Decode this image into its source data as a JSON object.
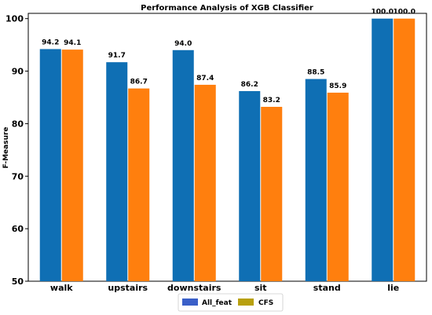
{
  "chart_data": {
    "type": "bar",
    "title": "Performance Analysis of XGB Classifier",
    "xlabel": "",
    "ylabel": "F-Measure",
    "ylim": [
      50,
      101
    ],
    "yticks": [
      50,
      60,
      70,
      80,
      90,
      100
    ],
    "categories": [
      "walk",
      "upstairs",
      "downstairs",
      "sit",
      "stand",
      "lie"
    ],
    "series": [
      {
        "name": "All_feat",
        "color": "#0f6fb4",
        "legend_color": "#3a5fc8",
        "values": [
          94.2,
          91.7,
          94.0,
          86.2,
          88.5,
          100.0
        ],
        "labels": [
          "94.2",
          "91.7",
          "94.0",
          "86.2",
          "88.5",
          "100.0"
        ]
      },
      {
        "name": "CFS",
        "color": "#ff7f0e",
        "legend_color": "#b8a00e",
        "values": [
          94.1,
          86.7,
          87.4,
          83.2,
          85.9,
          100.0
        ],
        "labels": [
          "94.1",
          "86.7",
          "87.4",
          "83.2",
          "85.9",
          "100.0"
        ]
      }
    ],
    "grid": false,
    "legend_position": "bottom-center"
  }
}
